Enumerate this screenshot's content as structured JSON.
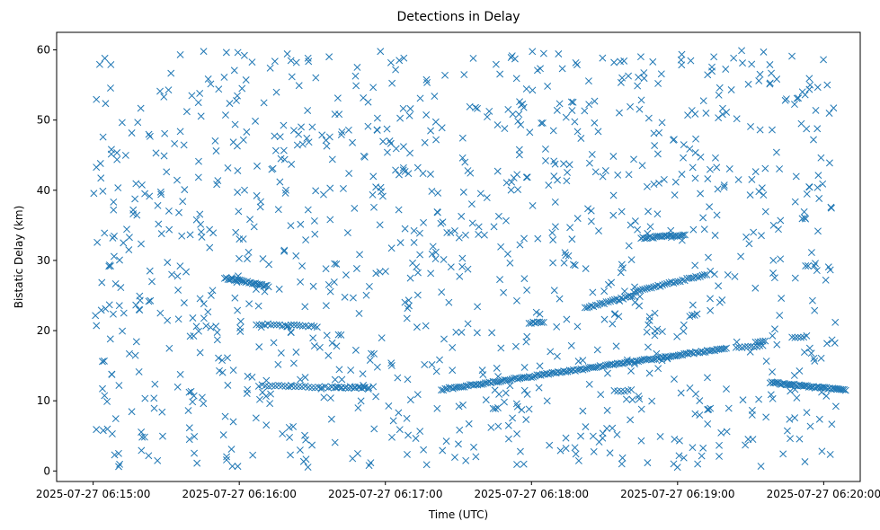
{
  "chart_data": {
    "type": "scatter",
    "title": "Detections in Delay",
    "xlabel": "Time (UTC)",
    "ylabel": "Bistatic Delay (km)",
    "marker": "x",
    "color": "#1f77b4",
    "grid": false,
    "legend": "none",
    "x_ticks": [
      "2025-07-27 06:15:00",
      "2025-07-27 06:16:00",
      "2025-07-27 06:17:00",
      "2025-07-27 06:18:00",
      "2025-07-27 06:19:00",
      "2025-07-27 06:20:00"
    ],
    "y_ticks": [
      "0",
      "10",
      "20",
      "30",
      "40",
      "50",
      "60"
    ],
    "xlim": [
      "2025-07-27 06:14:45",
      "2025-07-27 06:20:15"
    ],
    "ylim": [
      -1.5,
      62.5
    ],
    "tracks": [
      {
        "x": [
          "2025-07-27 06:15:54",
          "2025-07-27 06:16:12"
        ],
        "y": [
          27.5,
          26.3
        ],
        "n": 28
      },
      {
        "x": [
          "2025-07-27 06:16:07",
          "2025-07-27 06:16:32"
        ],
        "y": [
          20.9,
          20.6
        ],
        "n": 22
      },
      {
        "x": [
          "2025-07-27 06:16:08",
          "2025-07-27 06:16:53"
        ],
        "y": [
          12.2,
          11.8
        ],
        "n": 34
      },
      {
        "x": [
          "2025-07-27 06:16:38",
          "2025-07-27 06:16:55"
        ],
        "y": [
          11.9,
          12.0
        ],
        "n": 10
      },
      {
        "x": [
          "2025-07-27 06:17:23",
          "2025-07-27 06:19:20"
        ],
        "y": [
          11.6,
          17.5
        ],
        "n": 150
      },
      {
        "x": [
          "2025-07-27 06:17:59",
          "2025-07-27 06:18:05"
        ],
        "y": [
          21.0,
          21.3
        ],
        "n": 8
      },
      {
        "x": [
          "2025-07-27 06:18:22",
          "2025-07-27 06:18:42"
        ],
        "y": [
          23.2,
          25.0
        ],
        "n": 24
      },
      {
        "x": [
          "2025-07-27 06:18:42",
          "2025-07-27 06:19:12"
        ],
        "y": [
          25.5,
          28.0
        ],
        "n": 34
      },
      {
        "x": [
          "2025-07-27 06:18:45",
          "2025-07-27 06:19:03"
        ],
        "y": [
          33.2,
          33.6
        ],
        "n": 26
      },
      {
        "x": [
          "2025-07-27 06:19:05",
          "2025-07-27 06:19:08"
        ],
        "y": [
          22.1,
          22.3
        ],
        "n": 4
      },
      {
        "x": [
          "2025-07-27 06:19:24",
          "2025-07-27 06:19:35"
        ],
        "y": [
          17.5,
          17.9
        ],
        "n": 10
      },
      {
        "x": [
          "2025-07-27 06:19:38",
          "2025-07-27 06:20:09"
        ],
        "y": [
          12.6,
          11.5
        ],
        "n": 48
      },
      {
        "x": [
          "2025-07-27 06:19:32",
          "2025-07-27 06:19:36"
        ],
        "y": [
          18.3,
          18.6
        ],
        "n": 5
      },
      {
        "x": [
          "2025-07-27 06:19:47",
          "2025-07-27 06:19:53"
        ],
        "y": [
          19.0,
          19.2
        ],
        "n": 6
      },
      {
        "x": [
          "2025-07-27 06:18:34",
          "2025-07-27 06:18:41"
        ],
        "y": [
          11.4,
          11.5
        ],
        "n": 6
      }
    ],
    "clutter": {
      "x_range": [
        "2025-07-27 06:15:00",
        "2025-07-27 06:20:05"
      ],
      "y_range": [
        0.5,
        60.0
      ],
      "n": 1100
    }
  }
}
